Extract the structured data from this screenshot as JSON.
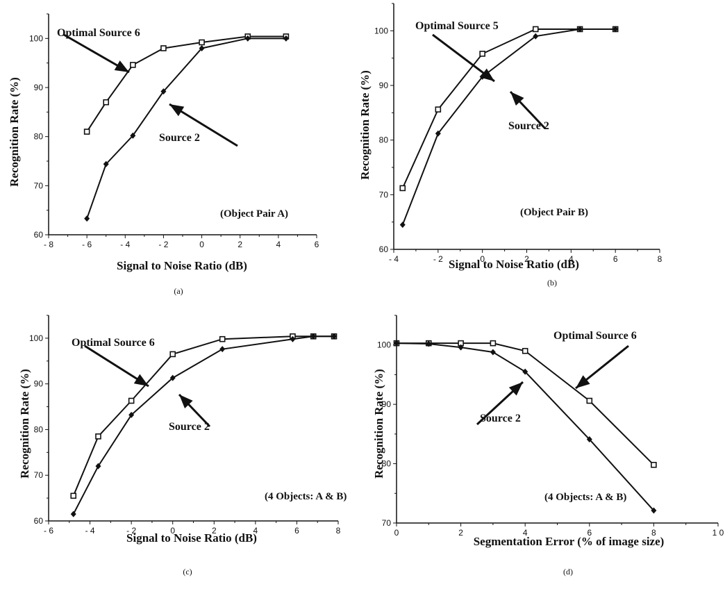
{
  "chart_data": [
    {
      "type": "line",
      "subfigure": "(a)",
      "xlabel": "Signal to Noise Ratio (dB)",
      "ylabel": "Recognition Rate (%)",
      "xlim": [
        -8,
        6
      ],
      "ylim": [
        60,
        105
      ],
      "xticks": [
        "- 8",
        "- 6",
        "- 4",
        "- 2",
        "0",
        "2",
        "4",
        "6"
      ],
      "yticks": [
        "60",
        "70",
        "80",
        "90",
        "100"
      ],
      "annotation": "(Object Pair A)",
      "series": [
        {
          "name": "Optimal Source 6",
          "marker": "square",
          "x": [
            -6,
            -5,
            -3.6,
            -2,
            0,
            2.4,
            4.4
          ],
          "y": [
            81,
            87,
            94.6,
            98,
            99.2,
            100.4,
            100.4
          ]
        },
        {
          "name": "Source 2",
          "marker": "diamond",
          "x": [
            -6,
            -5,
            -3.6,
            -2,
            0,
            2.4,
            4.4
          ],
          "y": [
            63.3,
            74.4,
            80.2,
            89.2,
            98,
            100,
            100
          ]
        }
      ]
    },
    {
      "type": "line",
      "subfigure": "(b)",
      "xlabel": "Signal to Noise Ratio (dB)",
      "ylabel": "Recognition Rate (%)",
      "xlim": [
        -4,
        8
      ],
      "ylim": [
        60,
        105
      ],
      "xticks": [
        "- 4",
        "- 2",
        "0",
        "2",
        "4",
        "6",
        "8"
      ],
      "yticks": [
        "60",
        "70",
        "80",
        "90",
        "100"
      ],
      "annotation": "(Object Pair B)",
      "series": [
        {
          "name": "Optimal Source 5",
          "marker": "square",
          "x": [
            -3.6,
            -2,
            0,
            2.4,
            4.4,
            6
          ],
          "y": [
            71.2,
            85.6,
            95.8,
            100.3,
            100.3,
            100.3
          ]
        },
        {
          "name": "Source 2",
          "marker": "diamond",
          "x": [
            -3.6,
            -2,
            0,
            2.4,
            4.4,
            6
          ],
          "y": [
            64.5,
            81.2,
            91.6,
            99,
            100.3,
            100.3
          ]
        }
      ]
    },
    {
      "type": "line",
      "subfigure": "(c)",
      "xlabel": "Signal to Noise Ratio (dB)",
      "ylabel": "Recognition Rate (%)",
      "xlim": [
        -6,
        8
      ],
      "ylim": [
        60,
        105
      ],
      "xticks": [
        "- 6",
        "- 4",
        "- 2",
        "0",
        "2",
        "4",
        "6",
        "8"
      ],
      "yticks": [
        "60",
        "70",
        "80",
        "90",
        "100"
      ],
      "annotation": "(4 Objects: A & B)",
      "series": [
        {
          "name": "Optimal Source 6",
          "marker": "square",
          "x": [
            -4.8,
            -3.6,
            -2,
            0,
            2.4,
            5.8,
            6.8,
            7.8
          ],
          "y": [
            65.5,
            78.5,
            86.3,
            96.5,
            99.8,
            100.4,
            100.4,
            100.4
          ]
        },
        {
          "name": "Source 2",
          "marker": "diamond",
          "x": [
            -4.8,
            -3.6,
            -2,
            0,
            2.4,
            5.8,
            6.8,
            7.8
          ],
          "y": [
            61.5,
            72,
            83.2,
            91.3,
            97.6,
            99.8,
            100.4,
            100.4
          ]
        }
      ]
    },
    {
      "type": "line",
      "subfigure": "(d)",
      "xlabel": "Segmentation Error (% of image size)",
      "ylabel": "Recognition Rate (%)",
      "xlim": [
        0,
        10
      ],
      "ylim": [
        70,
        105
      ],
      "xticks": [
        "0",
        "2",
        "4",
        "6",
        "8",
        "1 0"
      ],
      "yticks": [
        "70",
        "80",
        "90",
        "100"
      ],
      "annotation": "(4 Objects: A & B)",
      "series": [
        {
          "name": "Optimal Source 6",
          "marker": "square",
          "x": [
            0,
            1,
            2,
            3,
            4,
            6,
            8
          ],
          "y": [
            100.3,
            100.3,
            100.3,
            100.3,
            99,
            90.6,
            79.8
          ]
        },
        {
          "name": "Source 2",
          "marker": "diamond",
          "x": [
            0,
            1,
            2,
            3,
            4,
            6,
            8
          ],
          "y": [
            100.3,
            100.2,
            99.6,
            98.8,
            95.5,
            84.1,
            72.1
          ]
        }
      ]
    }
  ]
}
